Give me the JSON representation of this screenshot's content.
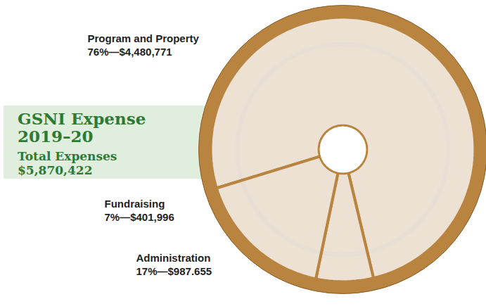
{
  "chart_data": {
    "type": "pie",
    "title": "GSNI Expense 2019–20",
    "subtitle": "Total Expenses",
    "total": "$5,870,422",
    "categories": [
      "Program and Property",
      "Fundraising",
      "Administration"
    ],
    "values": [
      76,
      7,
      17
    ],
    "value_labels": [
      "76%—$4,480,771",
      "7%—$401,996",
      "17%—$987.655"
    ],
    "color": "#f4eee9",
    "data_labels": true
  }
}
